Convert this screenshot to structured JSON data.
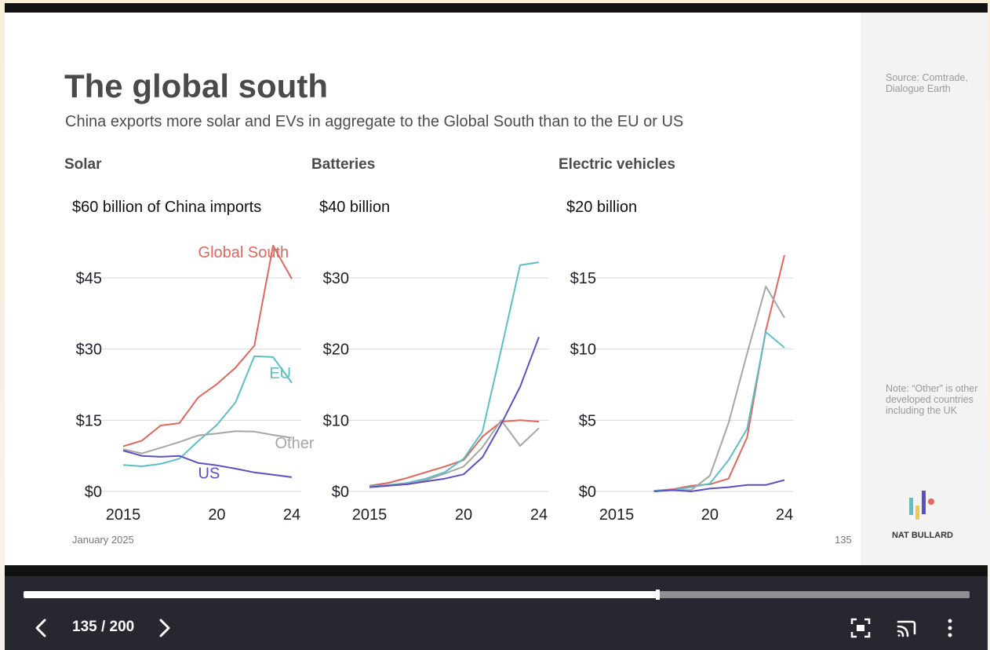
{
  "slide": {
    "title": "The global south",
    "subtitle": "China exports more solar and EVs in aggregate to the Global South than to the EU or US",
    "date": "January 2025",
    "page_number": "135"
  },
  "sidebar": {
    "source": "Source: Comtrade, Dialogue Earth",
    "note": "Note: “Other” is other developed countries including the UK",
    "brand": "NAT BULLARD"
  },
  "player": {
    "page_indicator": "135 / 200",
    "progress": 0.67
  },
  "colors": {
    "global_south": "#e0675c",
    "eu": "#5bbfc4",
    "other": "#a6a6a6",
    "us": "#5b4fc4"
  },
  "chart_data": [
    {
      "type": "line",
      "panel_title": "Solar",
      "title": "$60 billion of China imports",
      "x": [
        2015,
        2016,
        2017,
        2018,
        2019,
        2020,
        2021,
        2022,
        2023,
        2024
      ],
      "x_tick_labels": [
        "2015",
        "20",
        "24"
      ],
      "x_tick_values": [
        2015,
        2020,
        2024
      ],
      "y_tick_labels": [
        "$0",
        "$15",
        "$30",
        "$45"
      ],
      "y_tick_values": [
        0,
        15,
        30,
        45
      ],
      "ylim": [
        0,
        60
      ],
      "grid": true,
      "series": [
        {
          "name": "Global South",
          "key": "global_south",
          "label_at": {
            "x": 2019.0,
            "y": 49.3
          },
          "values": [
            9.5,
            10.7,
            13.9,
            14.4,
            19.8,
            22.6,
            26.1,
            30.7,
            51.8,
            44.8
          ]
        },
        {
          "name": "EU",
          "key": "eu",
          "label_at": {
            "x": 2022.8,
            "y": 23.8
          },
          "values": [
            5.6,
            5.3,
            5.8,
            6.9,
            10.6,
            14.0,
            18.8,
            28.5,
            28.3,
            22.9
          ]
        },
        {
          "name": "Other",
          "key": "other",
          "label_at": {
            "x": 2023.1,
            "y": 9.1
          },
          "values": [
            8.9,
            8.0,
            9.2,
            10.4,
            11.8,
            12.2,
            12.7,
            12.6,
            11.9,
            11.3
          ]
        },
        {
          "name": "US",
          "key": "us",
          "label_at": {
            "x": 2019.0,
            "y": 2.7
          },
          "values": [
            8.6,
            7.5,
            7.3,
            7.5,
            6.0,
            5.5,
            4.8,
            4.0,
            3.5,
            3.0
          ]
        }
      ]
    },
    {
      "type": "line",
      "panel_title": "Batteries",
      "title": "$40 billion",
      "x": [
        2015,
        2016,
        2017,
        2018,
        2019,
        2020,
        2021,
        2022,
        2023,
        2024
      ],
      "x_tick_labels": [
        "2015",
        "20",
        "24"
      ],
      "x_tick_values": [
        2015,
        2020,
        2024
      ],
      "y_tick_labels": [
        "$0",
        "$10",
        "$20",
        "$30"
      ],
      "y_tick_values": [
        0,
        10,
        20,
        30
      ],
      "ylim": [
        0,
        40
      ],
      "grid": true,
      "series": [
        {
          "name": "",
          "key": "global_south",
          "values": [
            0.8,
            1.2,
            1.9,
            2.7,
            3.5,
            4.4,
            7.7,
            9.8,
            10.0,
            9.8
          ]
        },
        {
          "name": "",
          "key": "eu",
          "values": [
            0.7,
            0.9,
            1.2,
            1.8,
            2.7,
            4.6,
            8.4,
            20.0,
            31.8,
            32.2
          ]
        },
        {
          "name": "",
          "key": "other",
          "values": [
            0.6,
            0.8,
            1.1,
            1.6,
            2.5,
            3.5,
            6.2,
            10.0,
            6.4,
            8.9
          ]
        },
        {
          "name": "",
          "key": "us",
          "values": [
            0.6,
            0.8,
            1.0,
            1.4,
            1.8,
            2.4,
            4.8,
            9.5,
            14.7,
            21.7
          ]
        }
      ]
    },
    {
      "type": "line",
      "panel_title": "Electric vehicles",
      "title": "$20 billion",
      "x": [
        2015,
        2016,
        2017,
        2018,
        2019,
        2020,
        2021,
        2022,
        2023,
        2024
      ],
      "x_tick_labels": [
        "2015",
        "20",
        "24"
      ],
      "x_tick_values": [
        2015,
        2020,
        2024
      ],
      "y_tick_labels": [
        "$0",
        "$5",
        "$10",
        "$15"
      ],
      "y_tick_values": [
        0,
        5,
        10,
        15
      ],
      "ylim": [
        0,
        20
      ],
      "grid": true,
      "series": [
        {
          "name": "",
          "key": "global_south",
          "values": [
            null,
            null,
            0.05,
            0.15,
            0.4,
            0.5,
            0.9,
            3.8,
            11.3,
            16.6
          ]
        },
        {
          "name": "",
          "key": "eu",
          "values": [
            null,
            null,
            0.05,
            0.1,
            0.3,
            0.55,
            2.2,
            4.4,
            11.2,
            10.1
          ]
        },
        {
          "name": "",
          "key": "other",
          "values": [
            null,
            null,
            0.0,
            0.1,
            0.1,
            1.1,
            4.8,
            9.7,
            14.4,
            12.2
          ]
        },
        {
          "name": "",
          "key": "us",
          "values": [
            null,
            null,
            0.0,
            0.1,
            0.0,
            0.2,
            0.3,
            0.45,
            0.45,
            0.8
          ]
        }
      ]
    }
  ]
}
